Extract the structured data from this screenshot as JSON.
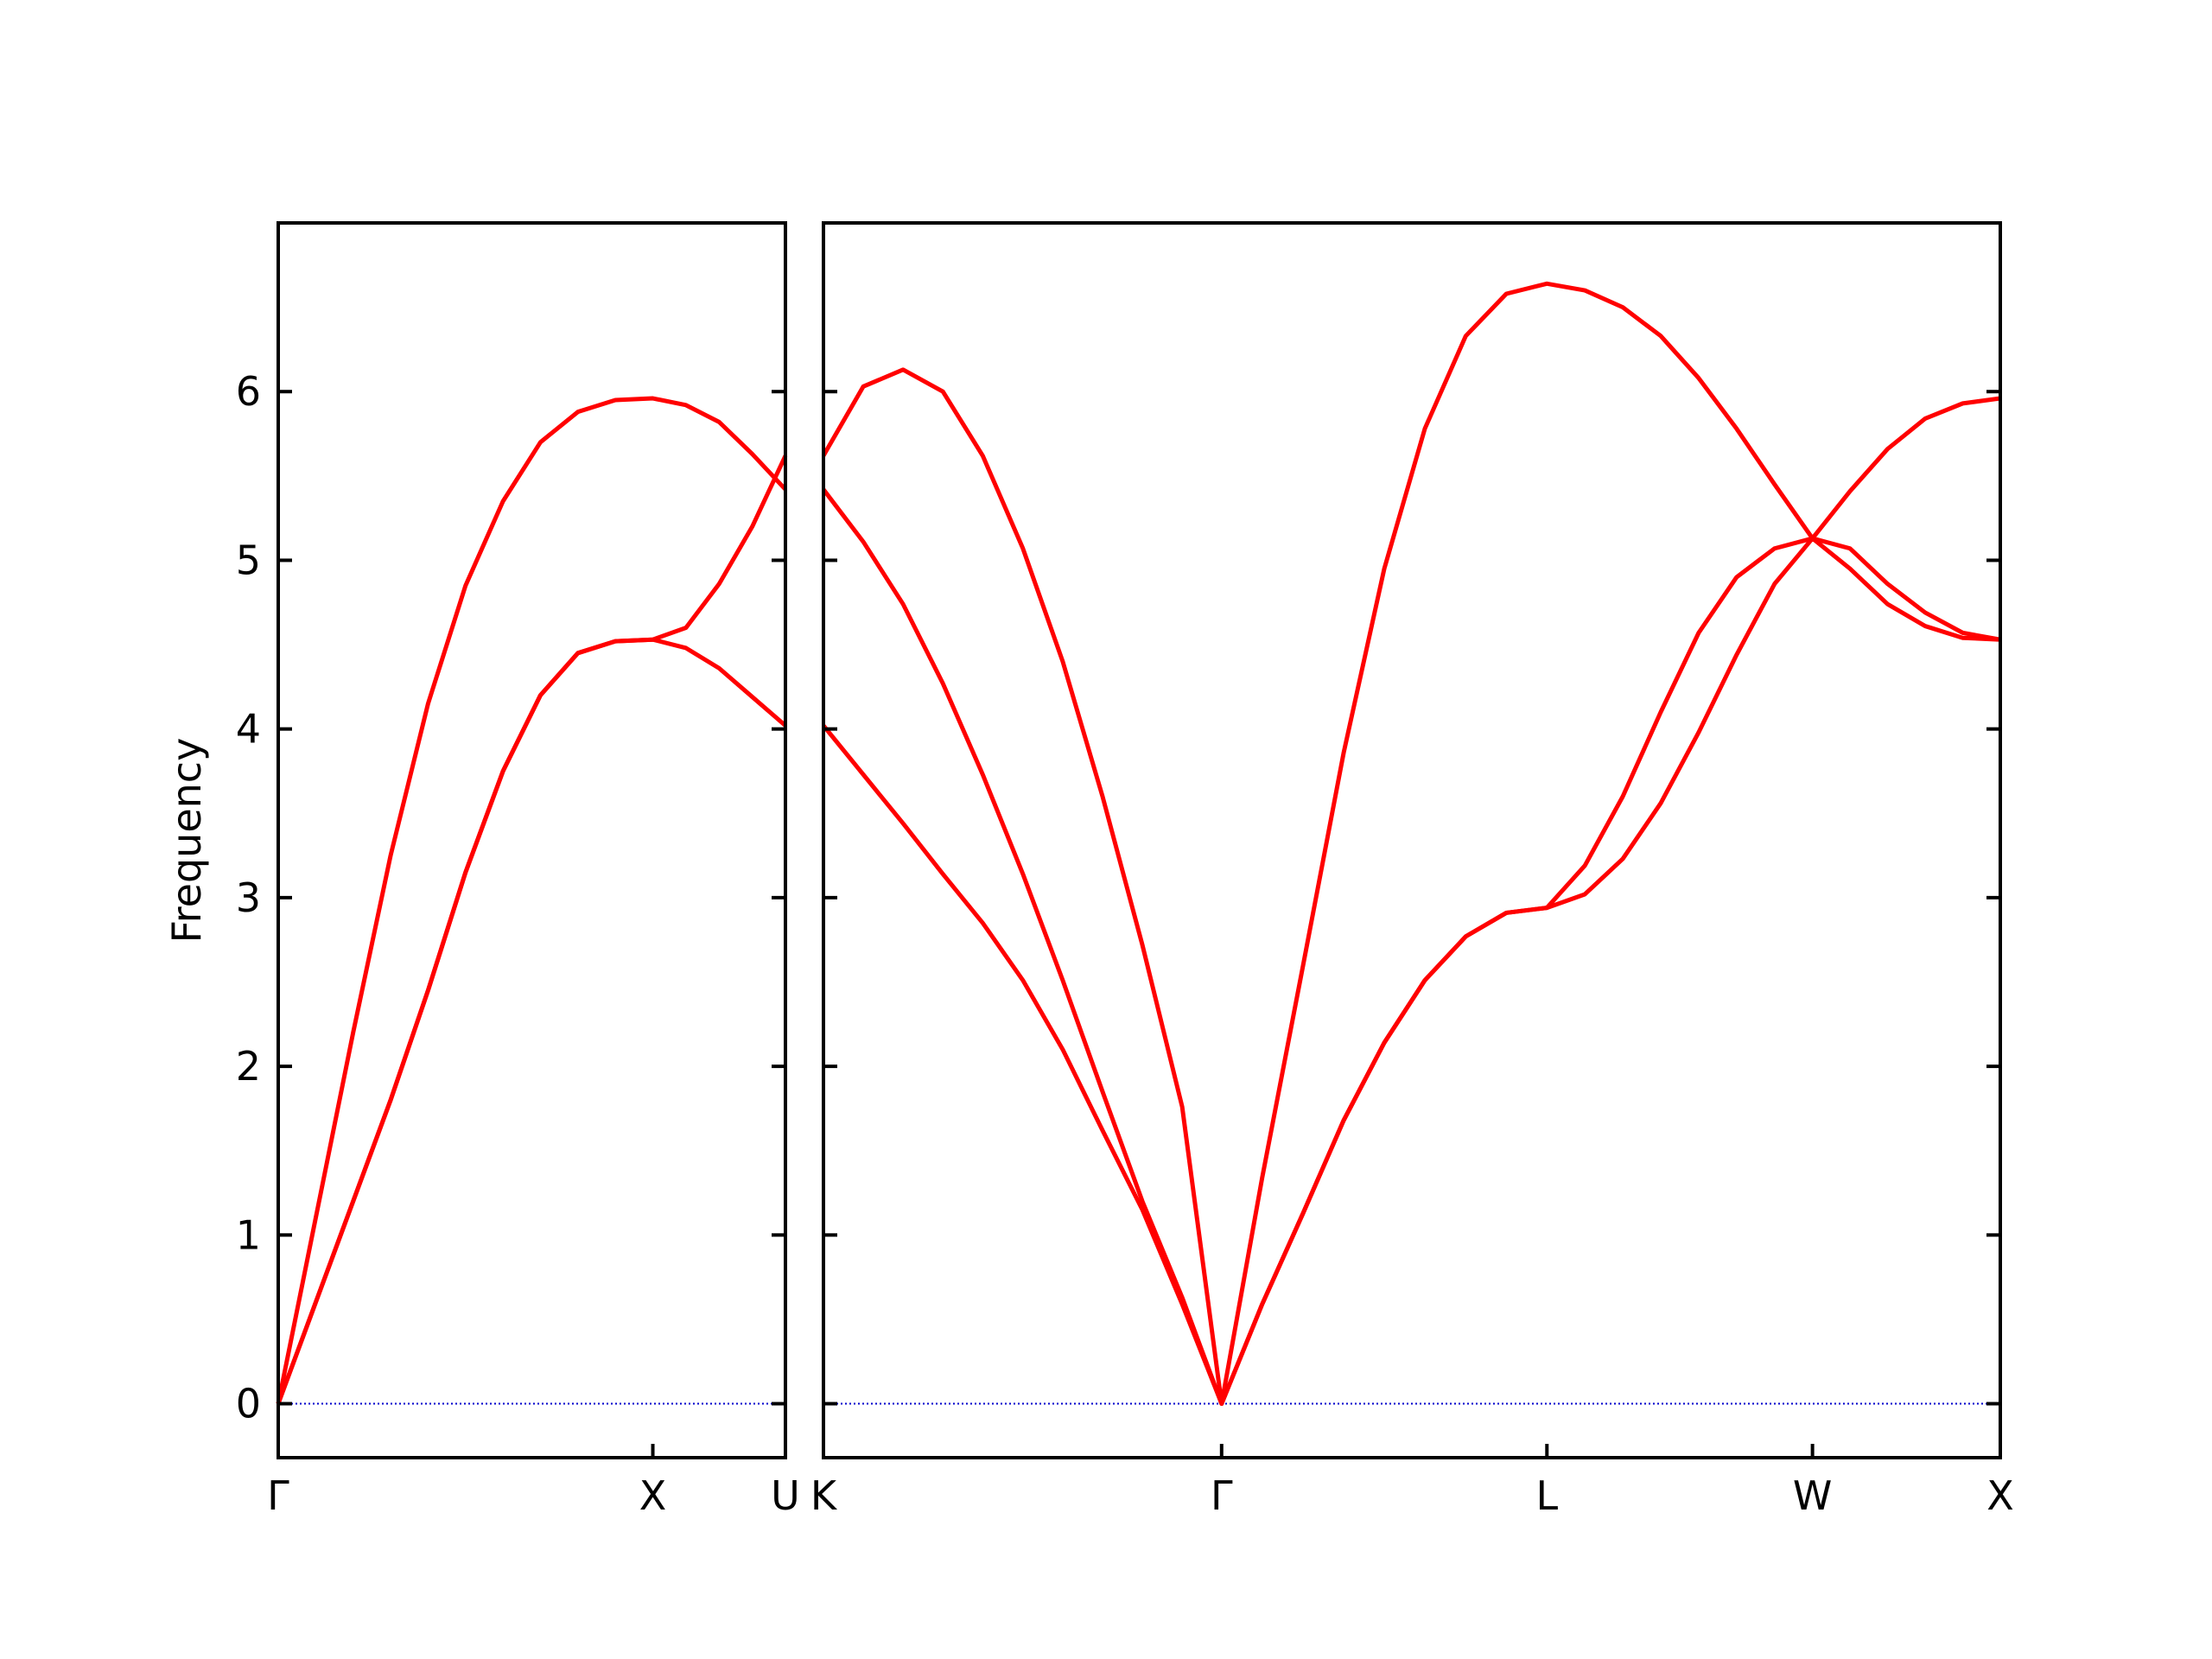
{
  "chart_data": [
    {
      "type": "line",
      "ylabel": "Frequency",
      "xlim": [
        0,
        1.354
      ],
      "ylim": [
        -0.32,
        7.0
      ],
      "xticks": [
        {
          "value": 0,
          "label": "Γ"
        },
        {
          "value": 1,
          "label": "X"
        },
        {
          "value": 1.354,
          "label": "U"
        }
      ],
      "yticks": [
        0,
        1,
        2,
        3,
        4,
        5,
        6
      ],
      "ytick_labels": true,
      "zero_line": true,
      "zero_line_color": "#0000cc",
      "x": [
        0,
        0.1,
        0.2,
        0.3,
        0.4,
        0.5,
        0.6,
        0.7,
        0.8,
        0.9,
        1.0,
        1.0885,
        1.177,
        1.2655,
        1.354
      ],
      "series": [
        {
          "color": "#ff0000",
          "values": [
            0,
            0.6,
            1.2,
            1.8,
            2.45,
            3.15,
            3.75,
            4.2,
            4.45,
            4.52,
            4.53,
            4.48,
            4.36,
            4.19,
            4.02
          ]
        },
        {
          "color": "#ff0000",
          "values": [
            0,
            0.6,
            1.2,
            1.8,
            2.45,
            3.15,
            3.75,
            4.2,
            4.45,
            4.52,
            4.53,
            4.6,
            4.86,
            5.2,
            5.62
          ]
        },
        {
          "color": "#ff0000",
          "values": [
            0,
            1.1,
            2.2,
            3.25,
            4.15,
            4.85,
            5.35,
            5.7,
            5.88,
            5.95,
            5.96,
            5.92,
            5.82,
            5.63,
            5.42
          ]
        }
      ]
    },
    {
      "type": "line",
      "xlim": [
        1.354,
        4.487
      ],
      "ylim": [
        -0.32,
        7.0
      ],
      "xticks": [
        {
          "value": 1.354,
          "label": "K"
        },
        {
          "value": 2.414,
          "label": "Γ"
        },
        {
          "value": 3.28,
          "label": "L"
        },
        {
          "value": 3.987,
          "label": "W"
        },
        {
          "value": 4.487,
          "label": "X"
        }
      ],
      "yticks": [
        0,
        1,
        2,
        3,
        4,
        5,
        6
      ],
      "ytick_labels": false,
      "zero_line": true,
      "zero_line_color": "#0000cc",
      "x": [
        1.354,
        1.46,
        1.566,
        1.672,
        1.778,
        1.885,
        1.991,
        2.097,
        2.203,
        2.309,
        2.414,
        2.522,
        2.631,
        2.739,
        2.847,
        2.955,
        3.064,
        3.172,
        3.28,
        3.381,
        3.482,
        3.583,
        3.684,
        3.785,
        3.886,
        3.987,
        4.087,
        4.187,
        4.287,
        4.387,
        4.487
      ],
      "series": [
        {
          "color": "#ff0000",
          "values": [
            4.02,
            3.73,
            3.44,
            3.14,
            2.85,
            2.51,
            2.1,
            1.62,
            1.15,
            0.59,
            0,
            0.59,
            1.13,
            1.68,
            2.14,
            2.51,
            2.77,
            2.91,
            2.94,
            3.02,
            3.23,
            3.56,
            3.98,
            4.44,
            4.86,
            5.13,
            4.95,
            4.74,
            4.61,
            4.54,
            4.53
          ]
        },
        {
          "color": "#ff0000",
          "values": [
            5.42,
            5.11,
            4.74,
            4.27,
            3.73,
            3.14,
            2.51,
            1.85,
            1.2,
            0.63,
            0,
            0.59,
            1.13,
            1.68,
            2.14,
            2.51,
            2.77,
            2.91,
            2.94,
            3.19,
            3.6,
            4.1,
            4.57,
            4.9,
            5.07,
            5.13,
            5.07,
            4.86,
            4.69,
            4.57,
            4.53
          ]
        },
        {
          "color": "#ff0000",
          "values": [
            5.62,
            6.03,
            6.13,
            6.0,
            5.62,
            5.07,
            4.4,
            3.6,
            2.72,
            1.76,
            0,
            1.34,
            2.6,
            3.86,
            4.95,
            5.78,
            6.33,
            6.58,
            6.64,
            6.6,
            6.5,
            6.33,
            6.08,
            5.78,
            5.45,
            5.13,
            5.41,
            5.66,
            5.84,
            5.93,
            5.96
          ]
        }
      ]
    }
  ]
}
